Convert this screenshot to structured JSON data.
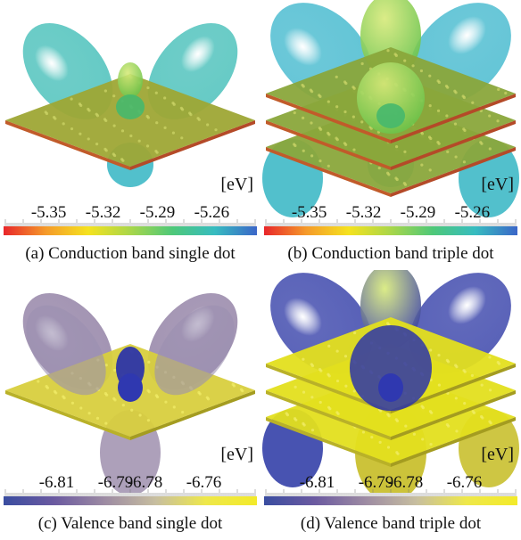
{
  "panels": [
    {
      "caption": "(a) Conduction band single dot",
      "unit": "[eV]",
      "ticks": [
        "-5.35",
        "-5.32",
        "-5.29",
        "-5.26"
      ],
      "tick_values": [
        -5.35,
        -5.32,
        -5.29,
        -5.26
      ],
      "scale_range": [
        -5.37,
        -5.24
      ],
      "colormap": [
        "#e8262a",
        "#f59a2a",
        "#f5e21f",
        "#a9d64a",
        "#4ec879",
        "#37bcc0",
        "#3b66c8"
      ],
      "lobe_color": "#34b9b2",
      "layer_color": "#9ea635",
      "layers": 1,
      "style": "conduction"
    },
    {
      "caption": "(b) Conduction band triple dot",
      "unit": "[eV]",
      "ticks": [
        "-5.35",
        "-5.32",
        "-5.29",
        "-5.26"
      ],
      "tick_values": [
        -5.35,
        -5.32,
        -5.29,
        -5.26
      ],
      "scale_range": [
        -5.37,
        -5.24
      ],
      "colormap": [
        "#e8262a",
        "#f59a2a",
        "#f5e21f",
        "#a9d64a",
        "#4ec879",
        "#37bcc0",
        "#3b66c8"
      ],
      "lobe_color": "#31b2c9",
      "layer_color": "#8aa63b",
      "layers": 3,
      "style": "conduction"
    },
    {
      "caption": "(c) Valence band single dot",
      "unit": "[eV]",
      "ticks": [
        "-6.81",
        "-6.79",
        "-6.78",
        "-6.76"
      ],
      "tick_values": [
        -6.81,
        -6.79,
        -6.78,
        -6.76
      ],
      "scale_range": [
        -6.825,
        -6.745
      ],
      "colormap": [
        "#3a4da0",
        "#6b5aa0",
        "#9d8ba3",
        "#c7bea0",
        "#eee84a",
        "#f3ea2a"
      ],
      "lobe_color": "#8c7aa0",
      "layer_color": "#d8cf3e",
      "layers": 1,
      "style": "valence"
    },
    {
      "caption": "(d) Valence band triple dot",
      "unit": "[eV]",
      "ticks": [
        "-6.81",
        "-6.79",
        "-6.78",
        "-6.76"
      ],
      "tick_values": [
        -6.81,
        -6.79,
        -6.78,
        -6.76
      ],
      "scale_range": [
        -6.825,
        -6.745
      ],
      "colormap": [
        "#3a4da0",
        "#6b5aa0",
        "#9d8ba3",
        "#c7bea0",
        "#eee84a",
        "#f3ea2a"
      ],
      "lobe_color": "#2f3aa6",
      "layer_color": "#e3df1e",
      "layers": 3,
      "style": "valence-triple"
    }
  ]
}
